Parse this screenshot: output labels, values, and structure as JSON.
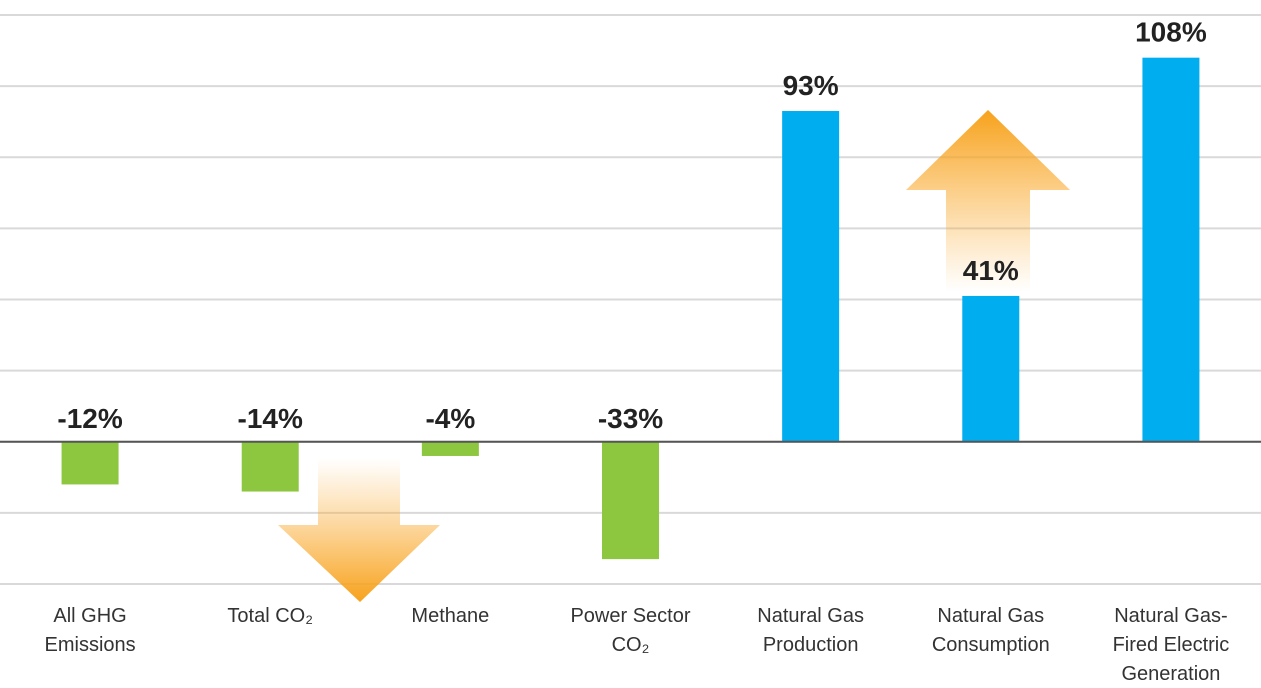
{
  "chart_data": {
    "type": "bar",
    "categories": [
      [
        "All GHG",
        "Emissions"
      ],
      [
        "Total CO₂"
      ],
      [
        "Methane"
      ],
      [
        "Power Sector",
        "CO₂"
      ],
      [
        "Natural Gas",
        "Production"
      ],
      [
        "Natural Gas",
        "Consumption"
      ],
      [
        "Natural Gas-",
        "Fired Electric",
        "Generation"
      ]
    ],
    "values": [
      -12,
      -14,
      -4,
      -33,
      93,
      41,
      108
    ],
    "value_labels": [
      "-12%",
      "-14%",
      "-4%",
      "-33%",
      "93%",
      "41%",
      "108%"
    ],
    "colors": [
      "#8dc63f",
      "#8dc63f",
      "#8dc63f",
      "#8dc63f",
      "#00aeef",
      "#00aeef",
      "#00aeef"
    ],
    "ylim": [
      -40,
      120
    ],
    "yticks": [
      -40,
      -20,
      0,
      20,
      40,
      60,
      80,
      100,
      120
    ],
    "grid": true
  }
}
